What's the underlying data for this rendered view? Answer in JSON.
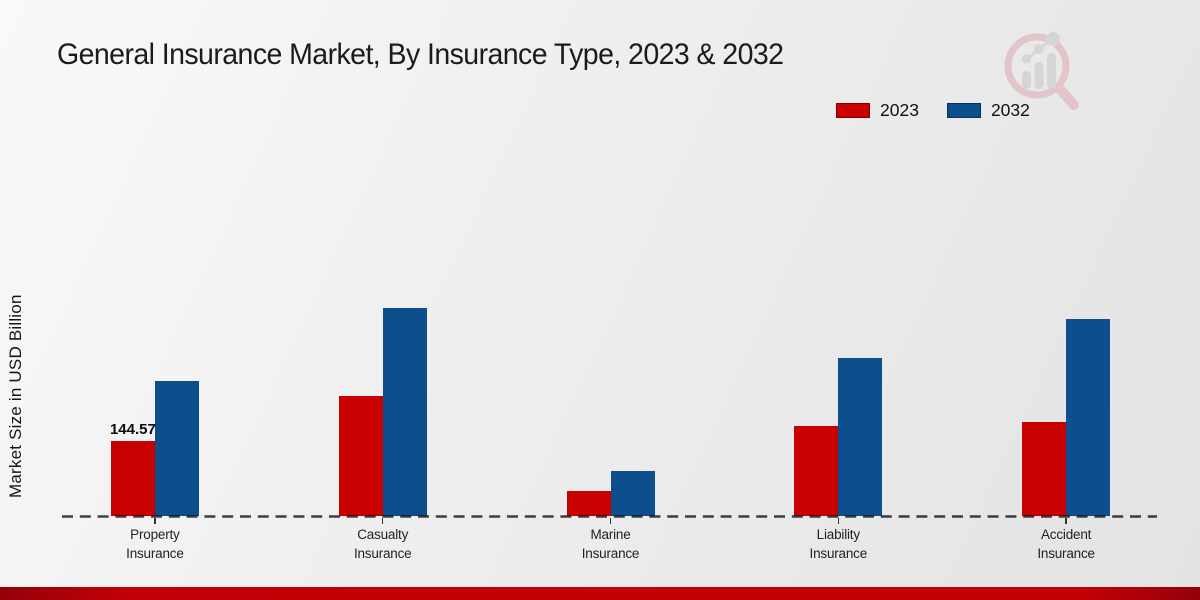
{
  "header": {
    "title": "General Insurance Market, By Insurance Type, 2023 & 2032"
  },
  "branding": {
    "logo_icon": "magnifier-bar-chart-logo",
    "footer_color": "#c00006"
  },
  "chart_data": {
    "type": "bar",
    "title": "General Insurance Market, By Insurance Type, 2023 & 2032",
    "xlabel": "",
    "ylabel": "Market Size in USD Billion",
    "categories": [
      "Property Insurance",
      "Casualty Insurance",
      "Marine Insurance",
      "Liability Insurance",
      "Accident Insurance"
    ],
    "series": [
      {
        "name": "2023",
        "color": "#c90000",
        "values": [
          144.57,
          231,
          49,
          173,
          181
        ]
      },
      {
        "name": "2032",
        "color": "#0d4e8d",
        "values": [
          259,
          400,
          87,
          303,
          378
        ]
      }
    ],
    "annotations": [
      {
        "series_index": 0,
        "category_index": 0,
        "text": "144.57"
      }
    ],
    "legend_position": "top-right",
    "grid": false,
    "ylim": [
      0,
      450
    ],
    "baseline_style": "dashed",
    "axis_visible": false
  }
}
